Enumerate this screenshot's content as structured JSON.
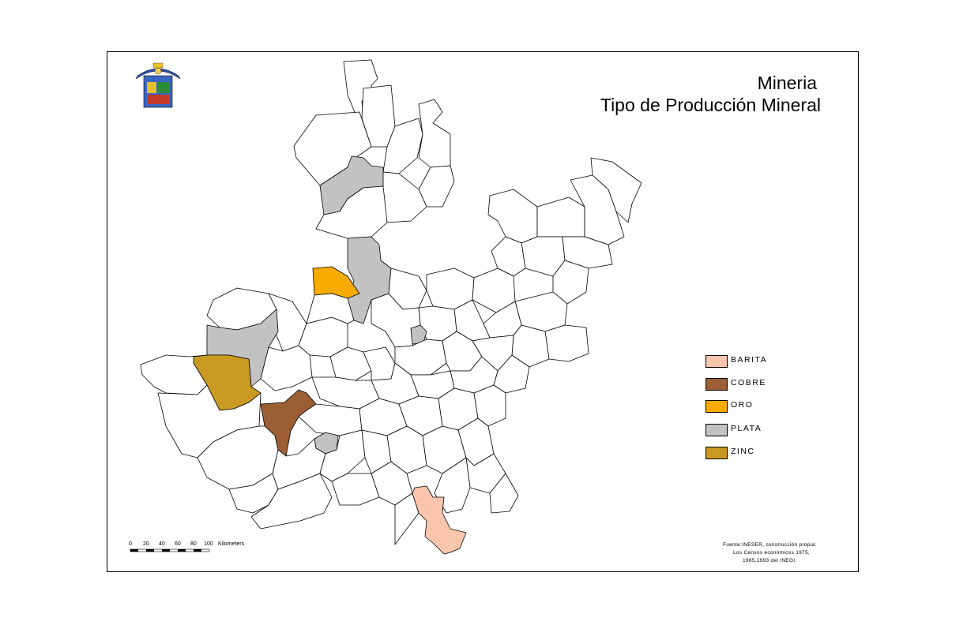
{
  "title_line1": "Mineria",
  "title_line2": "Tipo de Producción Mineral",
  "legend": [
    {
      "label": "BARITA",
      "color": "#f9c6ad"
    },
    {
      "label": "COBRE",
      "color": "#9b5e35"
    },
    {
      "label": "ORO",
      "color": "#f8ab00"
    },
    {
      "label": "PLATA",
      "color": "#c2c2c2"
    },
    {
      "label": "ZINC",
      "color": "#c99a22"
    }
  ],
  "scale_bar": {
    "ticks": [
      "0",
      "20",
      "40",
      "60",
      "80",
      "100"
    ],
    "unit": "Kilometers"
  },
  "source": {
    "line1": "Fuente:INESER, construcción propia:",
    "line2": "Los Censos económicos 1975,",
    "line3": "1985,1993 del INEGI."
  },
  "logo": {
    "icon": "coat-of-arms-emblem"
  },
  "colors": {
    "background": "#ffffff",
    "boundary": "#000000",
    "empty": "#ffffff"
  }
}
